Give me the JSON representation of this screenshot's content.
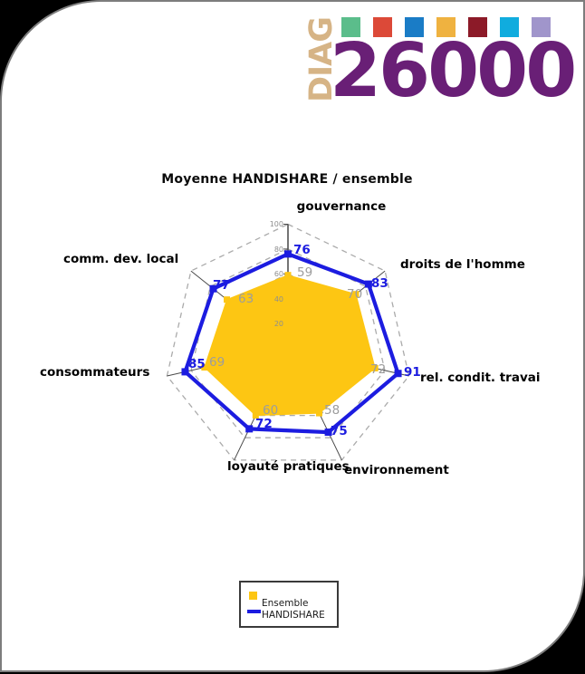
{
  "logo": {
    "diag_text": "DIAG",
    "number_text": "26000",
    "diag_color": "#d6b486",
    "number_color": "#691f76",
    "squares": [
      "#5bbd8b",
      "#dc4938",
      "#1a7cc6",
      "#efb240",
      "#8c1a28",
      "#10acde",
      "#a095cb"
    ]
  },
  "chart_data": {
    "type": "radar",
    "title": "Moyenne HANDISHARE / ensemble",
    "categories": [
      "gouvernance",
      "droits de l'homme",
      "rel. condit. travai",
      "environnement",
      "loyauté pratiques",
      "consommateurs",
      "comm. dev. local"
    ],
    "series": [
      {
        "name": "Ensemble",
        "color": "#fdc613",
        "style": "filled-area",
        "values": [
          59,
          70,
          72,
          58,
          60,
          69,
          63
        ]
      },
      {
        "name": "HANDISHARE",
        "color": "#1c1ce0",
        "style": "line",
        "values": [
          76,
          83,
          91,
          75,
          72,
          85,
          77
        ]
      }
    ],
    "axis": {
      "min": 0,
      "max": 100,
      "ticks": [
        100,
        80,
        60,
        40,
        20
      ],
      "grid": "dashed"
    },
    "legend_position": "bottom"
  }
}
